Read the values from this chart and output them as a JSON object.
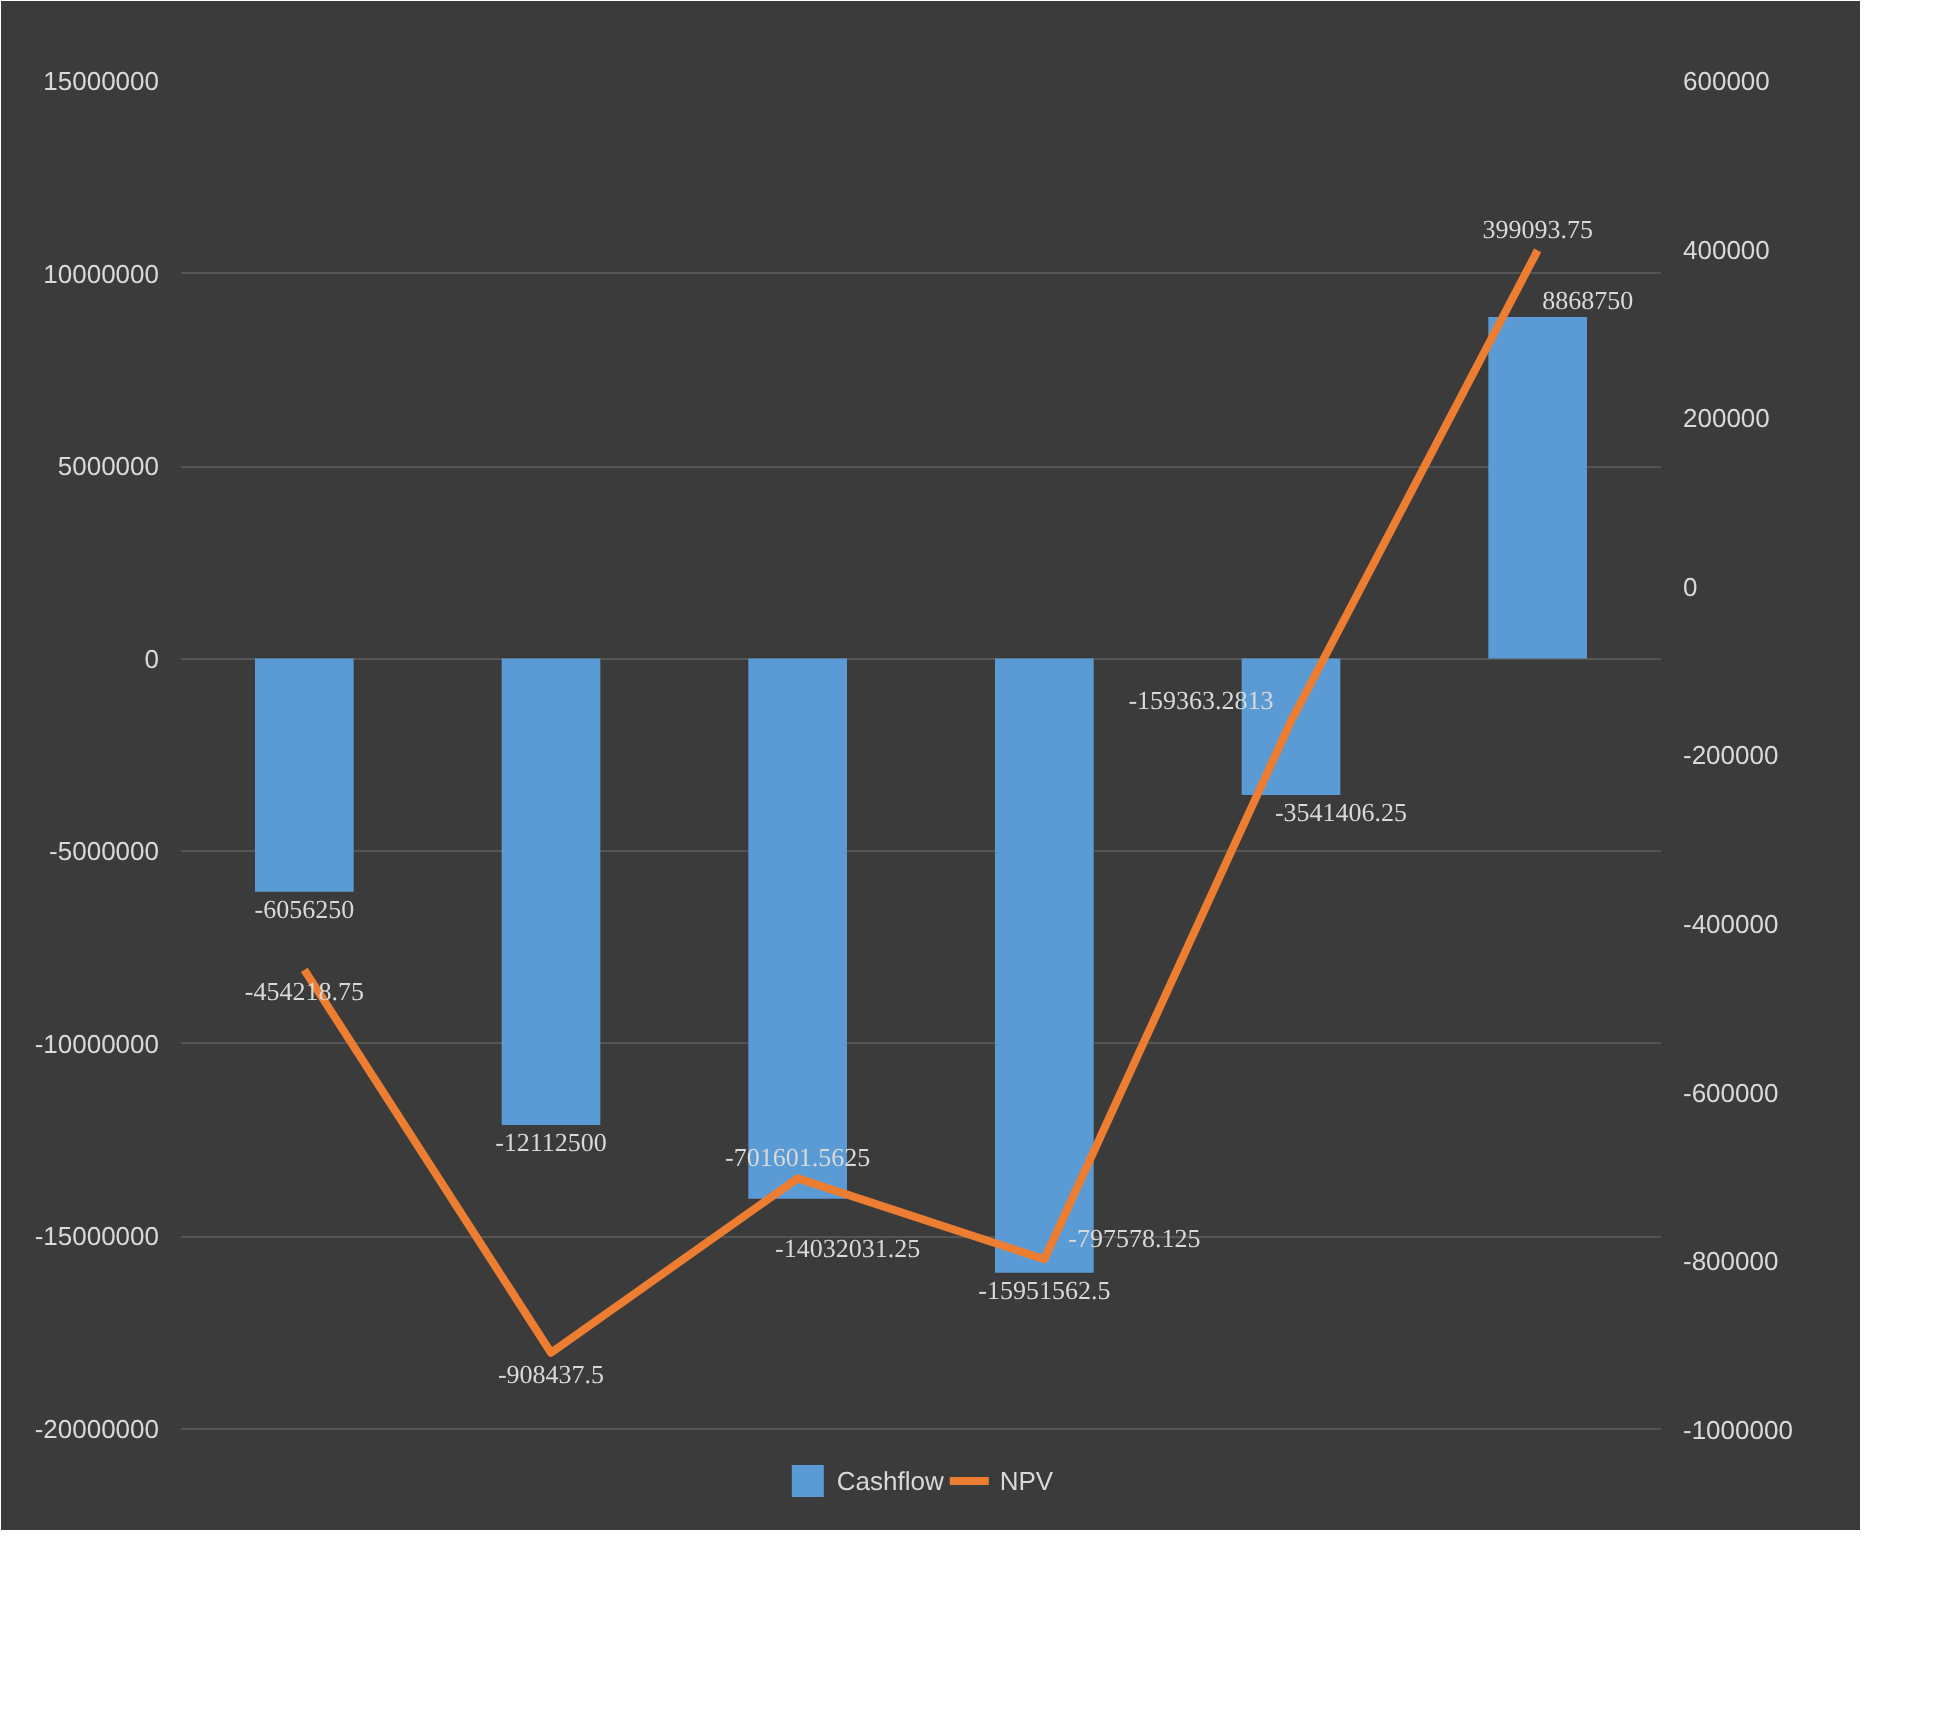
{
  "chart_data": {
    "type": "bar",
    "categories": [
      null,
      null,
      null,
      null,
      null,
      null
    ],
    "series": [
      {
        "name": "Cashflow",
        "color": "#5b9bd5",
        "values": [
          -6056250,
          -12112500,
          -14032031.25,
          -15951562.5,
          -3541406.25,
          8868750
        ]
      },
      {
        "name": "NPV",
        "type": "line",
        "axis": "y2",
        "color": "#ed7d31",
        "values": [
          -454218.75,
          -908437.5,
          -701601.5625,
          -797578.125,
          -159363.2813,
          399093.75
        ]
      }
    ],
    "ylim": [
      -22400000,
      15000000
    ],
    "yticks": [
      -20000000,
      -15000000,
      -10000000,
      -5000000,
      0,
      5000000,
      10000000,
      15000000
    ],
    "y2lim": [
      -1108000,
      600000
    ],
    "y2ticks": [
      -1000000,
      -800000,
      -600000,
      -400000,
      -200000,
      0,
      200000,
      400000,
      600000
    ],
    "grid": "y",
    "legend": "bottom",
    "data_labels": true,
    "tick_labels": "y",
    "marker": "none",
    "line_style": "solid"
  }
}
